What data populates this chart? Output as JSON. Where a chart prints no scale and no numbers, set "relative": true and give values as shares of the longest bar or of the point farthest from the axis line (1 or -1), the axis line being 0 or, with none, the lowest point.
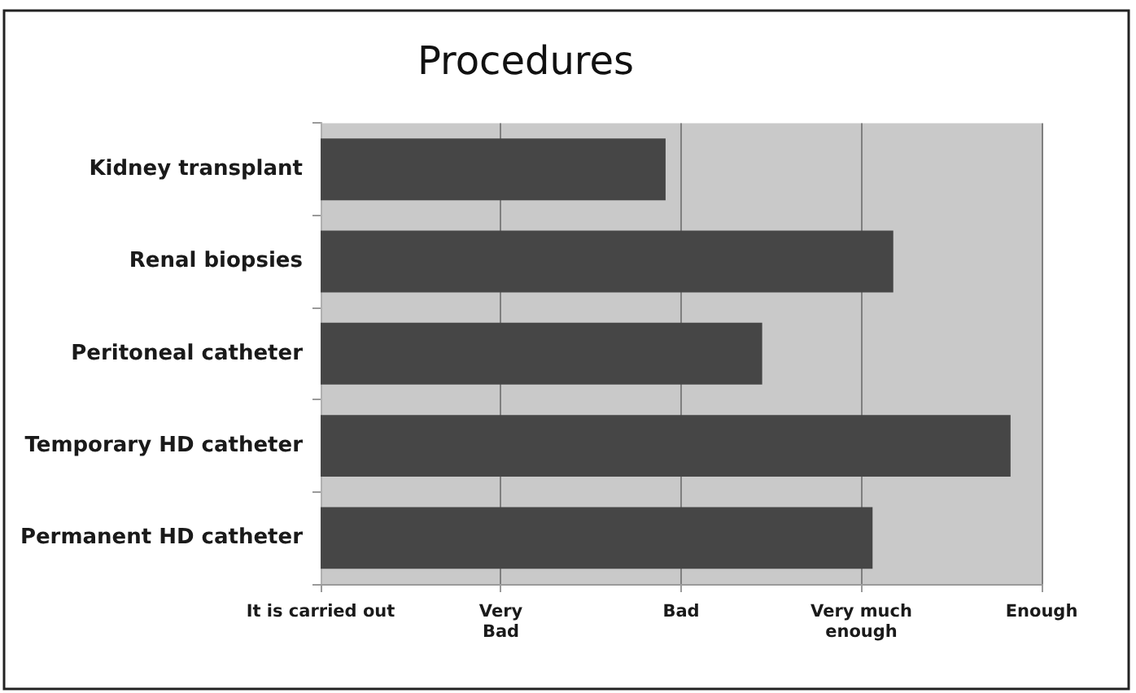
{
  "chart_data": {
    "type": "bar",
    "orientation": "horizontal",
    "relative": true,
    "title": "Procedures",
    "categories": [
      "Kidney transplant",
      "Renal biopsies",
      "Peritoneal catheter",
      "Temporary HD catheter",
      "Permanent HD catheter"
    ],
    "values": [
      0.5,
      0.83,
      0.64,
      1,
      0.8
    ],
    "color": "#464646",
    "annotations": [
      "It is carried out",
      "Very Bad",
      "Bad",
      "Very much enough",
      "Enough"
    ],
    "grid": "x"
  }
}
